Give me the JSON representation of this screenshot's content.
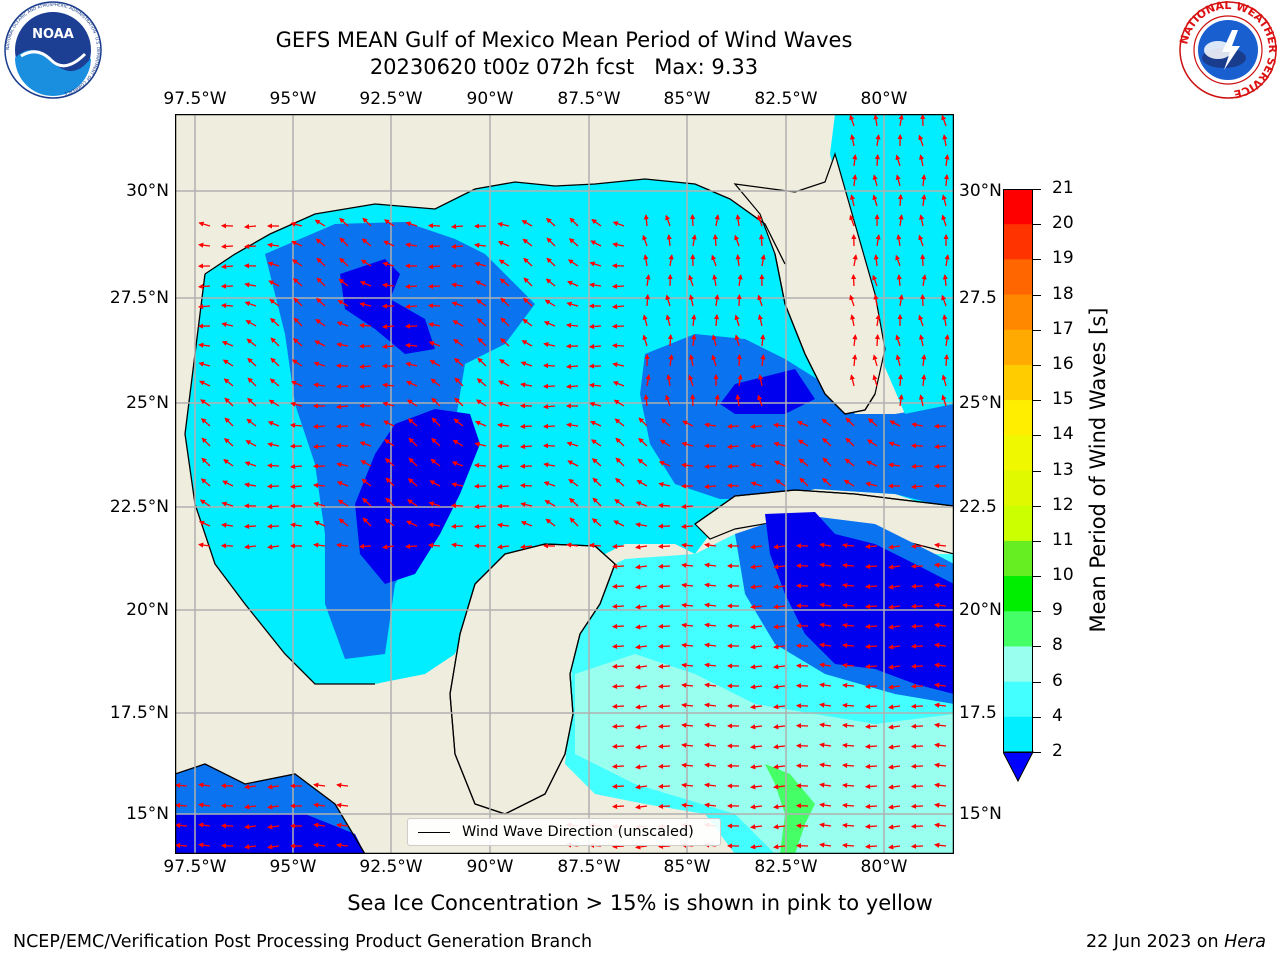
{
  "header": {
    "title_line1": "GEFS MEAN Gulf of Mexico Mean Period of Wind Waves",
    "title_line2": "20230620 t00z 072h fcst   Max: 9.33"
  },
  "logos": {
    "left_text": "NOAA",
    "left_ring_text": "NATIONAL OCEANIC AND ATMOSPHERIC ADMINISTRATION · U.S. DEPARTMENT OF COMMERCE",
    "right_ring_text": "NATIONAL WEATHER SERVICE"
  },
  "axes": {
    "lon_labels": [
      "97.5°W",
      "95°W",
      "92.5°W",
      "90°W",
      "87.5°W",
      "85°W",
      "82.5°W",
      "80°W"
    ],
    "lat_labels": [
      "30°N",
      "27.5°N",
      "25°N",
      "22.5°N",
      "20°N",
      "17.5°N",
      "15°N"
    ],
    "lat_labels_right": [
      "30°N",
      "27.5",
      "25°N",
      "22.5",
      "20°N",
      "17.5",
      "15°N"
    ]
  },
  "colorbar": {
    "title": "Mean Period of Wind Waves [s]",
    "labels": [
      "21",
      "20",
      "19",
      "18",
      "17",
      "16",
      "15",
      "14",
      "13",
      "12",
      "11",
      "10",
      "9",
      "8",
      "6",
      "4",
      "2"
    ],
    "colors": [
      "#ff0000",
      "#ff3300",
      "#ff6600",
      "#ff8800",
      "#ffaa00",
      "#ffcc00",
      "#ffee00",
      "#f0f800",
      "#e0f800",
      "#ccff00",
      "#66ee22",
      "#00ee00",
      "#44ff66",
      "#99ffee",
      "#44ffff",
      "#00eeff",
      "#0077ff"
    ],
    "extend_color": "#0000ff"
  },
  "legend": {
    "label": "Wind Wave Direction (unscaled)"
  },
  "map": {
    "land_color": "#efedde",
    "colors": {
      "c2": "#0000ee",
      "c4": "#0a73f0",
      "c6": "#00eeff",
      "c8": "#44ffff",
      "c9": "#99ffee",
      "c10": "#44ff66",
      "arrow": "#ff0000",
      "grid": "#b0b0b0"
    }
  },
  "captions": {
    "subcaption": "Sea Ice Concentration > 15% is shown in pink to yellow",
    "footer_left": "NCEP/EMC/Verification Post Processing Product Generation Branch",
    "footer_right_date": "22 Jun 2023 on ",
    "footer_right_host": "Hera"
  }
}
